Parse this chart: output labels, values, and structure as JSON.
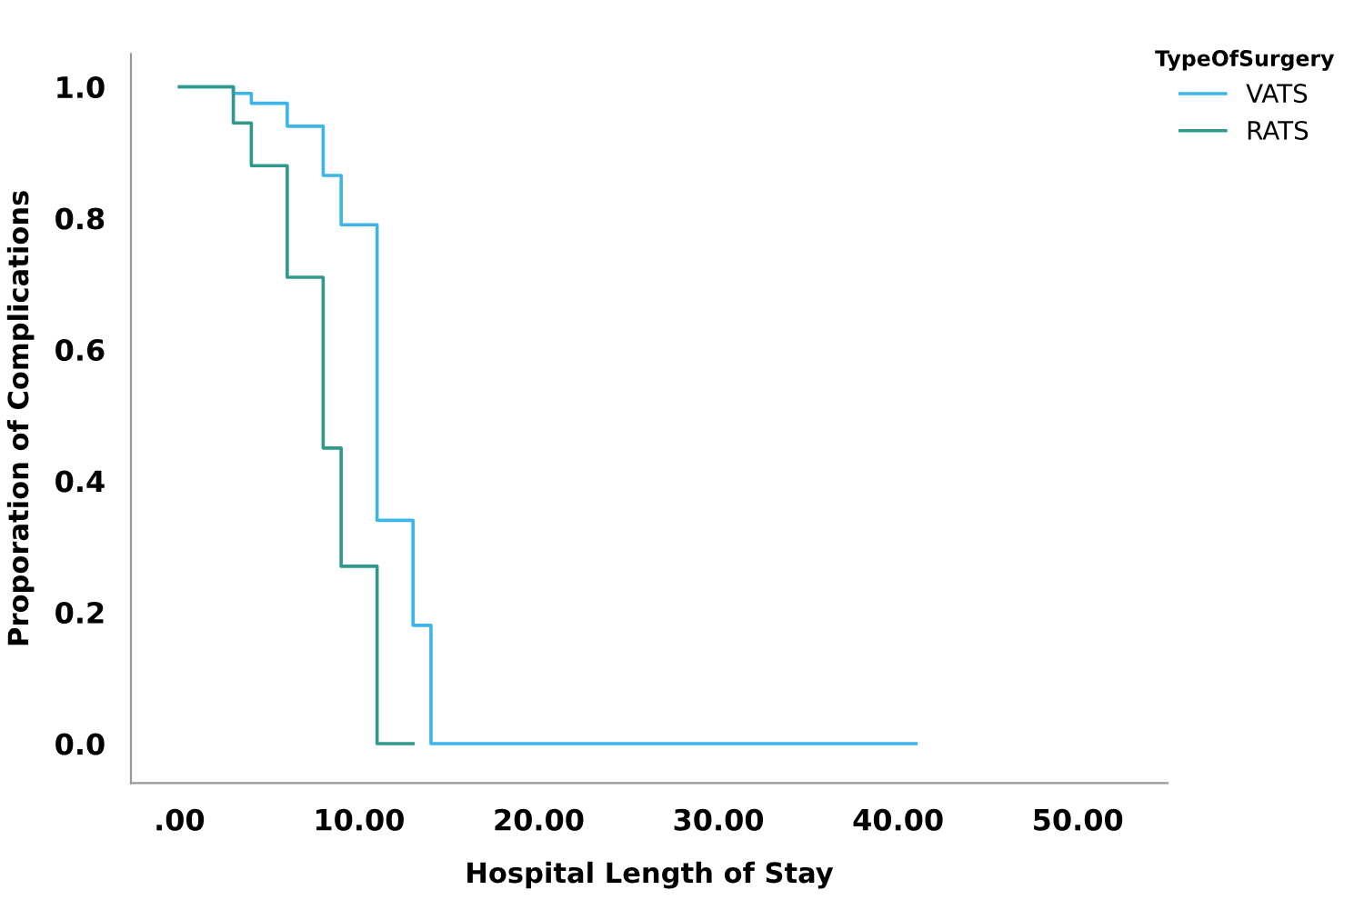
{
  "chart_data": {
    "type": "step",
    "xlabel": "Hospital Length of Stay",
    "ylabel": "Proporation of Complications",
    "legend_title": "TypeOfSurgery",
    "legend": "top right",
    "grid": false,
    "series": [
      {
        "name": "VATS",
        "color": "#3db5ea",
        "x": [
          0,
          3,
          4,
          6,
          8,
          9,
          11,
          13,
          14,
          41
        ],
        "values": [
          1.0,
          0.99,
          0.975,
          0.94,
          0.865,
          0.79,
          0.34,
          0.18,
          0.0,
          0.0
        ]
      },
      {
        "name": "RATS",
        "color": "#2f9a8c",
        "x": [
          0,
          3,
          4,
          6,
          8,
          9,
          11,
          13
        ],
        "values": [
          1.0,
          0.945,
          0.88,
          0.71,
          0.45,
          0.27,
          0.0,
          0.0
        ]
      }
    ],
    "xlim": [
      -2.7,
      55
    ],
    "xticks": [
      {
        "value": 0,
        "label": ".00"
      },
      {
        "value": 10,
        "label": "10.00"
      },
      {
        "value": 20,
        "label": "20.00"
      },
      {
        "value": 30,
        "label": "30.00"
      },
      {
        "value": 40,
        "label": "40.00"
      },
      {
        "value": 50,
        "label": "50.00"
      }
    ],
    "ylim": [
      -0.06,
      1.05
    ],
    "yticks": [
      {
        "value": 0,
        "label": "0.0"
      },
      {
        "value": 0.2,
        "label": "0.2"
      },
      {
        "value": 0.4,
        "label": "0.4"
      },
      {
        "value": 0.6,
        "label": "0.6"
      },
      {
        "value": 0.8,
        "label": "0.8"
      },
      {
        "value": 1.0,
        "label": "1.0"
      }
    ]
  }
}
